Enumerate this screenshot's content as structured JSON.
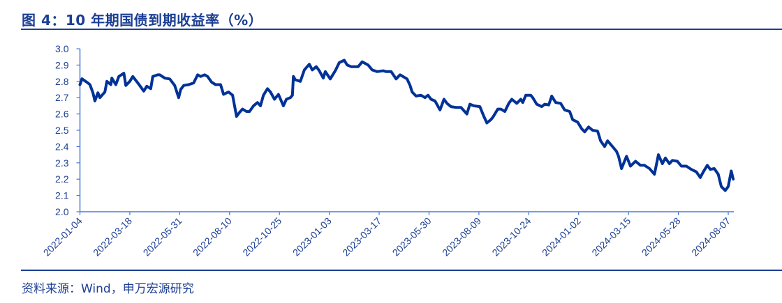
{
  "title": "图 4：10 年期国债到期收益率（%）",
  "source": "资料来源：Wind，申万宏源研究",
  "colors": {
    "line": "#003296",
    "axis": "#4a7bd6",
    "text": "#1c3f94"
  },
  "chart_data": {
    "type": "line",
    "title": "10 年期国债到期收益率（%）",
    "xlabel": "",
    "ylabel": "%",
    "x_unit": "trading-day index from 2022-01-04",
    "ylim": [
      2.0,
      3.0
    ],
    "yticks": [
      "3.0",
      "2.9",
      "2.8",
      "2.7",
      "2.6",
      "2.5",
      "2.4",
      "2.3",
      "2.2",
      "2.1",
      "2.0"
    ],
    "ytick_values": [
      3.0,
      2.9,
      2.8,
      2.7,
      2.6,
      2.5,
      2.4,
      2.3,
      2.2,
      2.1,
      2.0
    ],
    "xlim": [
      0,
      655
    ],
    "xticks": [
      "2022-01-04",
      "2022-03-18",
      "2022-05-31",
      "2022-08-10",
      "2022-10-25",
      "2023-01-03",
      "2023-03-17",
      "2023-05-30",
      "2023-08-09",
      "2023-10-24",
      "2024-01-02",
      "2024-03-15",
      "2024-05-28",
      "2024-08-07"
    ],
    "xtick_positions": [
      0,
      50,
      100,
      150,
      200,
      250,
      300,
      350,
      400,
      450,
      500,
      550,
      600,
      650
    ],
    "grid": false,
    "legend": "none",
    "series": [
      {
        "name": "10年期国债到期收益率",
        "x": [
          0,
          2,
          8,
          10,
          13,
          15,
          18,
          20,
          25,
          27,
          31,
          32,
          36,
          39,
          44,
          46,
          50,
          53,
          58,
          64,
          67,
          71,
          73,
          78,
          80,
          85,
          90,
          95,
          99,
          101,
          104,
          109,
          114,
          118,
          121,
          125,
          128,
          132,
          136,
          141,
          144,
          149,
          153,
          157,
          160,
          163,
          167,
          170,
          174,
          178,
          181,
          184,
          188,
          191,
          195,
          199,
          204,
          207,
          211,
          213,
          214,
          216,
          221,
          225,
          230,
          233,
          237,
          240,
          244,
          246,
          251,
          256,
          260,
          265,
          268,
          272,
          279,
          283,
          289,
          293,
          298,
          304,
          307,
          312,
          317,
          321,
          328,
          331,
          333,
          337,
          342,
          346,
          349,
          352,
          356,
          361,
          365,
          368,
          372,
          377,
          382,
          388,
          391,
          395,
          401,
          405,
          408,
          412,
          414,
          419,
          422,
          426,
          430,
          433,
          438,
          442,
          444,
          447,
          452,
          454,
          458,
          463,
          466,
          470,
          473,
          477,
          482,
          486,
          491,
          494,
          499,
          503,
          506,
          510,
          514,
          519,
          522,
          526,
          529,
          534,
          538,
          540,
          543,
          548,
          552,
          557,
          562,
          566,
          571,
          576,
          580,
          584,
          587,
          591,
          594,
          599,
          603,
          608,
          613,
          618,
          622,
          625,
          629,
          632,
          636,
          640,
          643,
          647,
          650,
          653,
          655
        ],
        "values": [
          2.78,
          2.816,
          2.79,
          2.78,
          2.73,
          2.68,
          2.73,
          2.7,
          2.735,
          2.8,
          2.78,
          2.82,
          2.78,
          2.83,
          2.85,
          2.775,
          2.8,
          2.83,
          2.79,
          2.74,
          2.77,
          2.755,
          2.83,
          2.84,
          2.84,
          2.82,
          2.815,
          2.775,
          2.7,
          2.75,
          2.775,
          2.78,
          2.79,
          2.84,
          2.83,
          2.84,
          2.83,
          2.795,
          2.78,
          2.78,
          2.72,
          2.735,
          2.715,
          2.585,
          2.61,
          2.63,
          2.615,
          2.615,
          2.65,
          2.67,
          2.65,
          2.715,
          2.755,
          2.735,
          2.69,
          2.72,
          2.65,
          2.69,
          2.7,
          2.715,
          2.83,
          2.81,
          2.8,
          2.87,
          2.905,
          2.87,
          2.89,
          2.865,
          2.82,
          2.86,
          2.815,
          2.865,
          2.915,
          2.93,
          2.9,
          2.89,
          2.89,
          2.92,
          2.9,
          2.87,
          2.86,
          2.865,
          2.86,
          2.86,
          2.815,
          2.84,
          2.815,
          2.775,
          2.735,
          2.71,
          2.715,
          2.7,
          2.715,
          2.69,
          2.68,
          2.625,
          2.69,
          2.665,
          2.645,
          2.64,
          2.64,
          2.6,
          2.66,
          2.65,
          2.645,
          2.585,
          2.545,
          2.565,
          2.58,
          2.63,
          2.63,
          2.615,
          2.665,
          2.69,
          2.665,
          2.69,
          2.67,
          2.715,
          2.715,
          2.7,
          2.66,
          2.645,
          2.66,
          2.655,
          2.71,
          2.67,
          2.665,
          2.625,
          2.615,
          2.565,
          2.55,
          2.51,
          2.49,
          2.52,
          2.5,
          2.495,
          2.435,
          2.4,
          2.435,
          2.4,
          2.37,
          2.34,
          2.265,
          2.34,
          2.28,
          2.31,
          2.285,
          2.285,
          2.265,
          2.23,
          2.35,
          2.295,
          2.33,
          2.295,
          2.315,
          2.31,
          2.28,
          2.28,
          2.26,
          2.245,
          2.21,
          2.245,
          2.285,
          2.26,
          2.265,
          2.23,
          2.155,
          2.13,
          2.155,
          2.25,
          2.2
        ]
      }
    ]
  }
}
